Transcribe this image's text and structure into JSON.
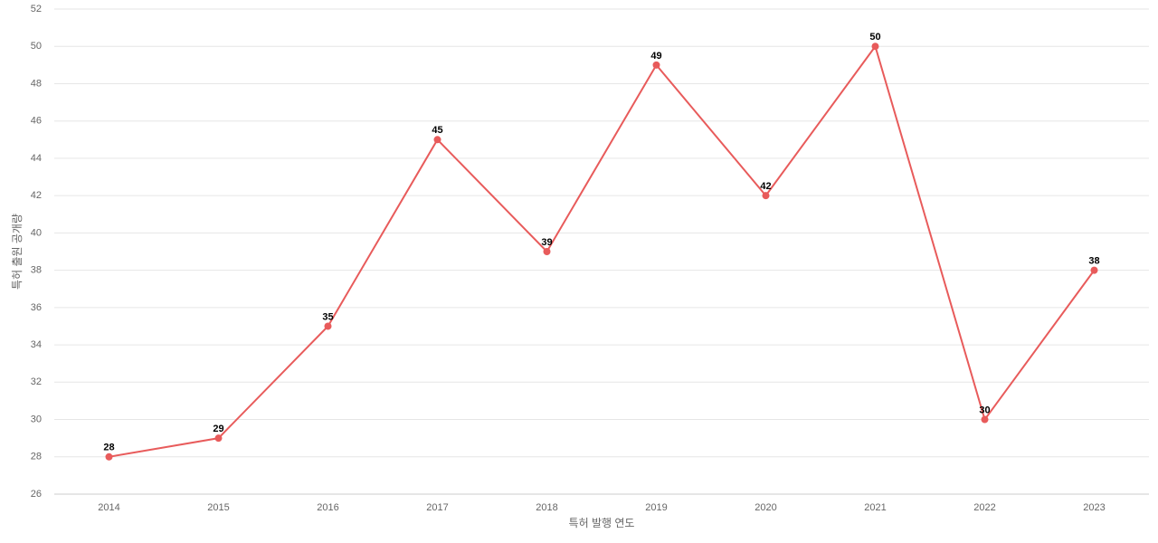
{
  "chart_data": {
    "type": "line",
    "x_label": "특허 발행 연도",
    "y_label": "특허 출원 공개량",
    "categories": [
      "2014",
      "2015",
      "2016",
      "2017",
      "2018",
      "2019",
      "2020",
      "2021",
      "2022",
      "2023"
    ],
    "series": [
      {
        "name": "특허 출원 공개량",
        "color": "#e85b5b",
        "values": [
          28,
          29,
          35,
          45,
          39,
          49,
          42,
          50,
          30,
          38
        ]
      }
    ],
    "ylim": [
      26,
      52
    ],
    "yticks": [
      26,
      28,
      30,
      32,
      34,
      36,
      38,
      40,
      42,
      44,
      46,
      48,
      50,
      52
    ],
    "grid": true
  }
}
